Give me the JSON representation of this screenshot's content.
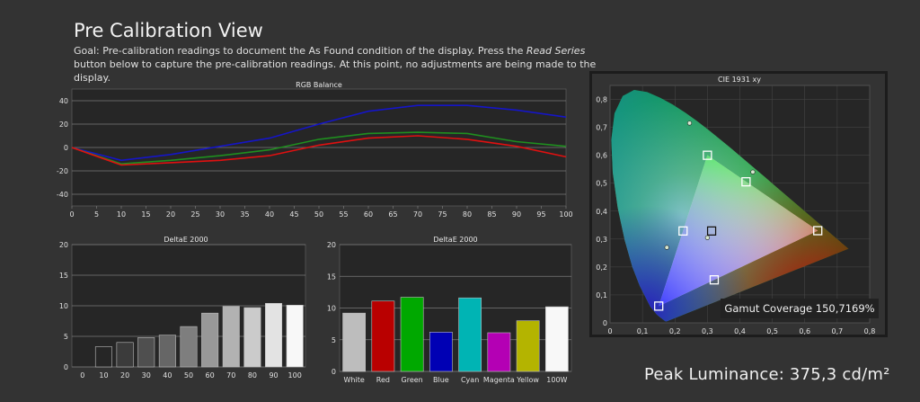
{
  "page": {
    "title": "Pre Calibration View",
    "goal_prefix": "Goal: Pre-calibration readings to document the As Found condition of the display. Press the ",
    "goal_italic": "Read Series",
    "goal_suffix": " button below to capture the pre-calibration readings. At this point, no adjustments are being made to the display.",
    "peak_luminance": "Peak Luminance: 375,3 cd/m²"
  },
  "colors": {
    "red": "#e01010",
    "green": "#1f8f1f",
    "blue": "#1515c8",
    "grid": "#7a7a7a",
    "bg": "#333333"
  },
  "chart_data": [
    {
      "type": "line",
      "title": "RGB Balance",
      "x": [
        0,
        10,
        20,
        30,
        40,
        50,
        60,
        70,
        80,
        90,
        100
      ],
      "xlim": [
        0,
        100
      ],
      "ylim": [
        -50,
        50
      ],
      "xticks": [
        0,
        5,
        10,
        15,
        20,
        25,
        30,
        35,
        40,
        45,
        50,
        55,
        60,
        65,
        70,
        75,
        80,
        85,
        90,
        95,
        100
      ],
      "yticks": [
        40,
        20,
        0,
        -20,
        -40
      ],
      "series": [
        {
          "color": "#1515c8",
          "values": [
            0,
            -11,
            -6,
            1,
            8,
            20,
            31,
            36,
            36,
            32,
            26
          ]
        },
        {
          "color": "#1f8f1f",
          "values": [
            0,
            -14,
            -11,
            -7,
            -2,
            7,
            12,
            13,
            12,
            5,
            1
          ]
        },
        {
          "color": "#e01010",
          "values": [
            0,
            -15,
            -13,
            -11,
            -7,
            2,
            8,
            10,
            7,
            1,
            -8
          ]
        }
      ]
    },
    {
      "type": "bar",
      "title": "DeltaE 2000",
      "categories": [
        "0",
        "10",
        "20",
        "30",
        "40",
        "50",
        "60",
        "70",
        "80",
        "90",
        "100"
      ],
      "values": [
        0,
        3.3,
        4.0,
        4.8,
        5.2,
        6.6,
        8.8,
        9.9,
        9.7,
        10.4,
        10.1
      ],
      "ylim": [
        0,
        20
      ],
      "yticks": [
        20,
        15,
        10,
        5,
        0
      ],
      "colors": [
        "#000000",
        "#262626",
        "#3b3b3b",
        "#4f4f4f",
        "#666666",
        "#7e7e7e",
        "#989898",
        "#b2b2b2",
        "#cbcbcb",
        "#e3e3e3",
        "#f8f8f8"
      ]
    },
    {
      "type": "bar",
      "title": "DeltaE 2000",
      "categories": [
        "White",
        "Red",
        "Green",
        "Blue",
        "Cyan",
        "Magenta",
        "Yellow",
        "100W"
      ],
      "values": [
        9.2,
        11.1,
        11.7,
        6.2,
        11.6,
        6.1,
        8.0,
        10.2
      ],
      "ylim": [
        0,
        20
      ],
      "yticks": [
        20,
        15,
        10,
        5,
        0
      ],
      "colors": [
        "#bdbdbd",
        "#b90000",
        "#00a800",
        "#0000b4",
        "#00b4b4",
        "#b400b4",
        "#b4b400",
        "#f8f8f8"
      ]
    },
    {
      "type": "scatter",
      "title": "CIE 1931 xy",
      "xlim": [
        0,
        0.8
      ],
      "ylim": [
        0,
        0.85
      ],
      "xticks": [
        "0",
        "0,1",
        "0,2",
        "0,3",
        "0,4",
        "0,5",
        "0,6",
        "0,7",
        "0,8"
      ],
      "yticks": [
        "0,8",
        "0,7",
        "0,6",
        "0,5",
        "0,4",
        "0,3",
        "0,2",
        "0,1",
        "0"
      ],
      "measured_squares": [
        [
          0.64,
          0.33
        ],
        [
          0.3,
          0.6
        ],
        [
          0.15,
          0.06
        ],
        [
          0.225,
          0.329
        ],
        [
          0.321,
          0.154
        ],
        [
          0.419,
          0.505
        ],
        [
          0.313,
          0.329
        ]
      ],
      "target_points": [
        [
          0.245,
          0.715
        ],
        [
          0.175,
          0.27
        ],
        [
          0.44,
          0.54
        ],
        [
          0.3,
          0.305
        ]
      ],
      "annotation": "Gamut Coverage 150,7169%"
    }
  ]
}
